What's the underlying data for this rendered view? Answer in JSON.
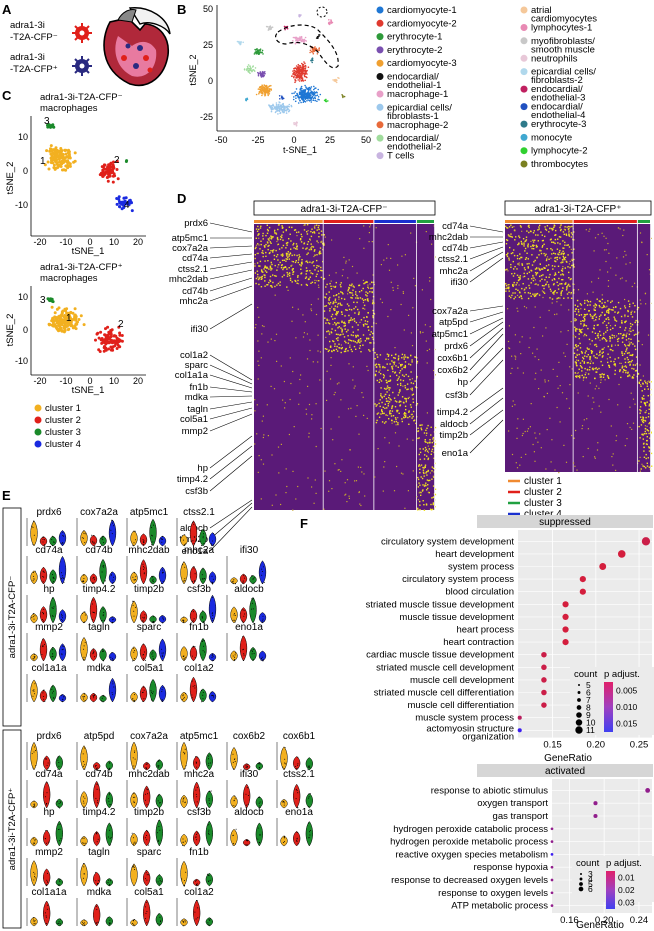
{
  "panel_labels": {
    "a": "A",
    "b": "B",
    "c": "C",
    "d": "D",
    "e": "E",
    "f": "F"
  },
  "panel_a": {
    "neg_line1": "adra1-3i",
    "neg_line2": "-T2A-CFP⁻",
    "pos_line1": "adra1-3i",
    "pos_line2": "-T2A-CFP⁺"
  },
  "panel_b": {
    "xlabel": "t-SNE_1",
    "ylabel": "tSNE_2",
    "xticks": [
      "-50",
      "-25",
      "0",
      "25",
      "50"
    ],
    "yticks": [
      "50",
      "25",
      "0",
      "-25"
    ],
    "legend": [
      {
        "label": "cardiomyocyte-1",
        "color": "#1f77d4"
      },
      {
        "label": "cardiomyocyte-2",
        "color": "#e03a2f"
      },
      {
        "label": "erythrocyte-1",
        "color": "#2e9a3a"
      },
      {
        "label": "erythrocyte-2",
        "color": "#7a50b0"
      },
      {
        "label": "cardiomyocyte-3",
        "color": "#f0a030"
      },
      {
        "label": "endocardial/\nendothelial-1",
        "color": "#111111"
      },
      {
        "label": "macrophage-1",
        "color": "#e8a0c8"
      },
      {
        "label": "epicardial cells/\nfibroblasts-1",
        "color": "#9cc8ec"
      },
      {
        "label": "macrophage-2",
        "color": "#e86a3a"
      },
      {
        "label": "endocardial/\nendothelial-2",
        "color": "#a0dc9c"
      },
      {
        "label": "T cells",
        "color": "#c8b4e0"
      },
      {
        "label": "atrial\ncardiomyocytes",
        "color": "#f5c89a"
      },
      {
        "label": "lymphocytes-1",
        "color": "#e88ab4"
      },
      {
        "label": "myofibroblasts/\nsmooth muscle",
        "color": "#c8c8c8"
      },
      {
        "label": "neutrophils",
        "color": "#e8c8d8"
      },
      {
        "label": "epicardial cells/\nfibroblasts-2",
        "color": "#b0d8ec"
      },
      {
        "label": "endocardial/\nendothelial-3",
        "color": "#c02060"
      },
      {
        "label": "endocardial/\nendothelial-4",
        "color": "#2050c0"
      },
      {
        "label": "erythrocyte-3",
        "color": "#2e7a8a"
      },
      {
        "label": "monocyte",
        "color": "#40a8d0"
      },
      {
        "label": "lymphocyte-2",
        "color": "#30d030"
      },
      {
        "label": "thrombocytes",
        "color": "#7a8020"
      }
    ]
  },
  "panel_c": {
    "neg_title1": "adra1-3i-T2A-CFP⁻",
    "neg_title2": "macrophages",
    "pos_title1": "adra1-3i-T2A-CFP⁺",
    "pos_title2": "macrophages",
    "xlabel": "tSNE_1",
    "ylabel": "tSNE_2",
    "xticks": [
      "-20",
      "-10",
      "0",
      "10",
      "20"
    ],
    "yticks": [
      "10",
      "0",
      "-10"
    ],
    "legend": [
      {
        "label": "cluster 1",
        "color": "#f2b020"
      },
      {
        "label": "cluster 2",
        "color": "#e0201a"
      },
      {
        "label": "cluster 3",
        "color": "#1a8a2a"
      },
      {
        "label": "cluster 4",
        "color": "#1a2ae0"
      }
    ],
    "neg_cluster_labels": [
      "1",
      "2",
      "3",
      "4"
    ],
    "pos_cluster_labels": [
      "1",
      "2",
      "3"
    ]
  },
  "panel_d": {
    "neg_title": "adra1-3i-T2A-CFP⁻",
    "pos_title": "adra1-3i-T2A-CFP⁺",
    "neg_genes": [
      "prdx6",
      "atp5mc1",
      "cox7a2a",
      "cd74a",
      "ctss2.1",
      "mhc2dab",
      "cd74b",
      "mhc2a",
      "ifi30",
      "col1a2",
      "sparc",
      "col1a1a",
      "fn1b",
      "mdka",
      "tagln",
      "col5a1",
      "mmp2",
      "hp",
      "timp4.2",
      "csf3b",
      "aldocb",
      "timp2b",
      "eno1a"
    ],
    "pos_genes": [
      "cd74a",
      "mhc2dab",
      "cd74b",
      "ctss2.1",
      "mhc2a",
      "ifi30",
      "cox7a2a",
      "atp5pd",
      "atp5mc1",
      "prdx6",
      "cox6b1",
      "cox6b2",
      "hp",
      "csf3b",
      "timp4.2",
      "aldocb",
      "timp2b",
      "eno1a"
    ],
    "cluster_legend": [
      {
        "label": "cluster 1",
        "color": "#f08a30"
      },
      {
        "label": "cluster 2",
        "color": "#e0201a"
      },
      {
        "label": "cluster 3",
        "color": "#20a040"
      },
      {
        "label": "cluster 4",
        "color": "#1a30d0"
      }
    ]
  },
  "panel_e": {
    "neg_side_label": "adra1-3i-T2A-CFP⁻",
    "pos_side_label": "adra1-3i-T2A-CFP⁺",
    "neg_rows": [
      [
        "prdx6",
        "cox7a2a",
        "atp5mc1",
        "ctss2.1"
      ],
      [
        "cd74a",
        "cd74b",
        "mhc2dab",
        "mhc2a",
        "ifi30"
      ],
      [
        "hp",
        "timp4.2",
        "timp2b",
        "csf3b",
        "aldocb"
      ],
      [
        "mmp2",
        "tagln",
        "sparc",
        "fn1b",
        "eno1a"
      ],
      [
        "col1a1a",
        "mdka",
        "col5a1",
        "col1a2"
      ]
    ],
    "pos_rows": [
      [
        "prdx6",
        "atp5pd",
        "cox7a2a",
        "atp5mc1",
        "cox6b2",
        "cox6b1"
      ],
      [
        "cd74a",
        "cd74b",
        "mhc2dab",
        "mhc2a",
        "ifi30",
        "ctss2.1"
      ],
      [
        "hp",
        "timp4.2",
        "timp2b",
        "csf3b",
        "aldocb",
        "eno1a"
      ],
      [
        "mmp2",
        "tagln",
        "sparc",
        "fn1b"
      ],
      [
        "col1a1a",
        "mdka",
        "col5a1",
        "col1a2"
      ]
    ]
  },
  "panel_f": {
    "top_title": "suppressed",
    "bottom_title": "activated",
    "xlabel": "GeneRatio",
    "legend_count_title": "count",
    "legend_p_title": "p adjust.",
    "top_xticks": [
      "0.15",
      "0.20",
      "0.25"
    ],
    "top_count_values": [
      "5",
      "6",
      "7",
      "8",
      "9",
      "10",
      "11"
    ],
    "top_p_values": [
      "0.005",
      "0.010",
      "0.015"
    ],
    "bottom_xticks": [
      "0.16",
      "0.20",
      "0.24"
    ],
    "bottom_count_values": [
      "3",
      "4",
      "5",
      "6"
    ],
    "bottom_p_values": [
      "0.01",
      "0.02",
      "0.03"
    ]
  },
  "chart_data": [
    {
      "type": "scatter",
      "title": "suppressed",
      "xlabel": "GeneRatio",
      "xlim": [
        0.11,
        0.265
      ],
      "categories": [
        "circulatory system development",
        "heart development",
        "system process",
        "circulatory system process",
        "blood circulation",
        "striated muscle tissue development",
        "muscle tissue development",
        "heart process",
        "heart contraction",
        "cardiac muscle tissue development",
        "striated muscle cell development",
        "muscle cell development",
        "striated muscle cell differentiation",
        "muscle cell differentiation",
        "muscle system process",
        "actomyosin structure\norganization"
      ],
      "x": [
        0.258,
        0.23,
        0.208,
        0.185,
        0.185,
        0.165,
        0.165,
        0.165,
        0.165,
        0.14,
        0.14,
        0.14,
        0.14,
        0.14,
        0.112,
        0.112
      ],
      "count": [
        11,
        10,
        9,
        8,
        8,
        8,
        8,
        8,
        8,
        7,
        7,
        7,
        7,
        7,
        5,
        5
      ],
      "p_adjust": [
        0.003,
        0.002,
        0.002,
        0.002,
        0.002,
        0.002,
        0.002,
        0.002,
        0.002,
        0.003,
        0.003,
        0.003,
        0.003,
        0.003,
        0.005,
        0.019
      ]
    },
    {
      "type": "scatter",
      "title": "activated",
      "xlabel": "GeneRatio",
      "xlim": [
        0.14,
        0.255
      ],
      "categories": [
        "response to abiotic stimulus",
        "oxygen transport",
        "gas transport",
        "hydrogen peroxide catabolic process",
        "hydrogen peroxide metabolic process",
        "reactive oxygen species metabolism",
        "response hypoxia",
        "response to decreased oxygen levels",
        "response to oxygen levels",
        "ATP metabolic process"
      ],
      "x": [
        0.25,
        0.19,
        0.19,
        0.14,
        0.14,
        0.14,
        0.14,
        0.14,
        0.14,
        0.14
      ],
      "count": [
        6,
        5,
        5,
        3,
        3,
        3,
        3,
        3,
        3,
        3
      ],
      "p_adjust": [
        0.005,
        0.005,
        0.005,
        0.005,
        0.005,
        0.01,
        0.005,
        0.005,
        0.005,
        0.005
      ]
    }
  ]
}
